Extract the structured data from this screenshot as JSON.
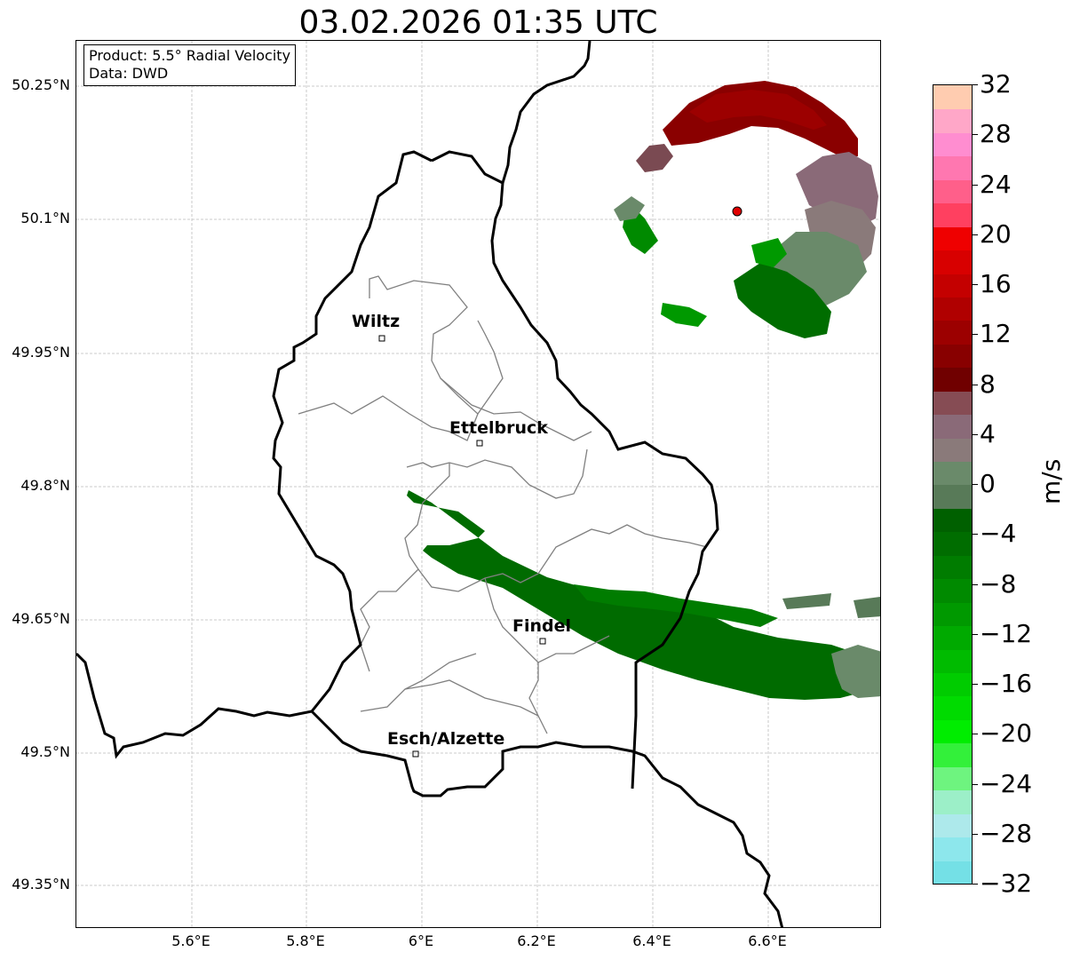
{
  "title": "03.02.2026 01:35 UTC",
  "info": {
    "product": "Product: 5.5° Radial Velocity",
    "data_source": "Data: DWD"
  },
  "axes": {
    "y_ticks": [
      "50.25°N",
      "50.1°N",
      "49.95°N",
      "49.8°N",
      "49.65°N",
      "49.5°N",
      "49.35°N"
    ],
    "x_ticks": [
      "5.6°E",
      "5.8°E",
      "6°E",
      "6.2°E",
      "6.4°E",
      "6.6°E"
    ]
  },
  "cities": [
    {
      "name": "Wiltz",
      "lon": 5.93,
      "lat": 49.966
    },
    {
      "name": "Ettelbruck",
      "lon": 6.1,
      "lat": 49.847
    },
    {
      "name": "Findel",
      "lon": 6.21,
      "lat": 49.627
    },
    {
      "name": "Esch/Alzette",
      "lon": 5.99,
      "lat": 49.5
    }
  ],
  "radar_site": {
    "lon": 6.548,
    "lat": 50.11
  },
  "colorbar": {
    "unit": "m/s",
    "min": -32,
    "max": 32,
    "tick_labels": [
      "32",
      "28",
      "24",
      "20",
      "16",
      "12",
      "8",
      "4",
      "0",
      "−4",
      "−8",
      "−12",
      "−16",
      "−20",
      "−24",
      "−28",
      "−32"
    ],
    "colors": [
      "#74e0e6",
      "#8de7ec",
      "#ade9eb",
      "#9cefc8",
      "#6ef47f",
      "#33f03a",
      "#00ed00",
      "#00db00",
      "#00cc00",
      "#00bb00",
      "#00aa00",
      "#009900",
      "#008a00",
      "#007c00",
      "#006d00",
      "#006000",
      "#587a58",
      "#6a8a6a",
      "#8a7a7a",
      "#8a6a78",
      "#864c54",
      "#700000",
      "#880000",
      "#9c0000",
      "#b00000",
      "#c40000",
      "#d80000",
      "#ef0000",
      "#ff4060",
      "#ff5f8a",
      "#ff77b0",
      "#ff8dd0",
      "#ffa7c8",
      "#ffccb0"
    ]
  }
}
